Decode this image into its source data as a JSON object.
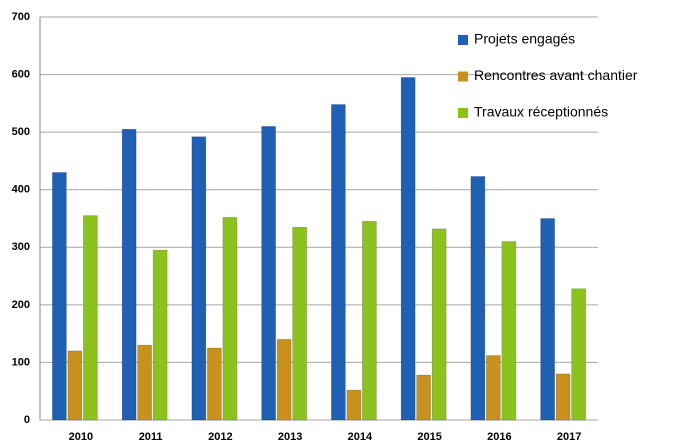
{
  "chart_data": {
    "type": "bar",
    "categories": [
      "2010",
      "2011",
      "2012",
      "2013",
      "2014",
      "2015",
      "2016",
      "2017"
    ],
    "series": [
      {
        "name": "Projets engagés",
        "color": "#1f5fb4",
        "values": [
          430,
          505,
          492,
          510,
          548,
          595,
          423,
          350
        ]
      },
      {
        "name": "Rencontres avant chantier",
        "color": "#c8901c",
        "values": [
          120,
          130,
          125,
          140,
          52,
          78,
          112,
          80
        ]
      },
      {
        "name": "Travaux réceptionnés",
        "color": "#8cc21e",
        "values": [
          355,
          295,
          352,
          335,
          345,
          332,
          310,
          228
        ]
      }
    ],
    "ylim": [
      0,
      700
    ],
    "yticks": [
      0,
      100,
      200,
      300,
      400,
      500,
      600,
      700
    ],
    "grid": true,
    "legend": "top-right"
  }
}
